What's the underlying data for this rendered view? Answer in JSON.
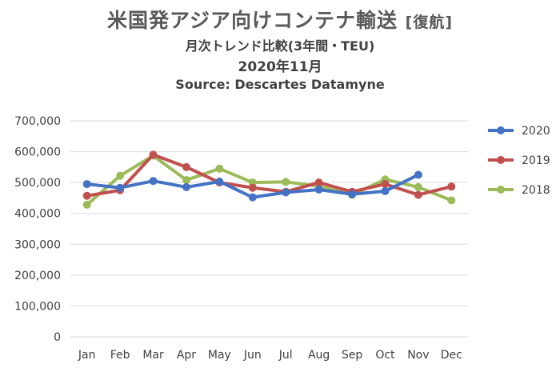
{
  "title": {
    "main": "米国発アジア向けコンテナ輸送",
    "main_suffix": "[復航]",
    "subtitle": "月次トレンド比較(3年間・TEU)",
    "date": "2020年11月",
    "source": "Source: Descartes Datamyne"
  },
  "chart_data": {
    "type": "line",
    "title": "米国発アジア向けコンテナ輸送 [復航]",
    "subtitle": "月次トレンド比較(3年間・TEU)",
    "categories": [
      "Jan",
      "Feb",
      "Mar",
      "Apr",
      "May",
      "Jun",
      "Jul",
      "Aug",
      "Sep",
      "Oct",
      "Nov",
      "Dec"
    ],
    "ylim": [
      0,
      700000
    ],
    "yticks": [
      0,
      100000,
      200000,
      300000,
      400000,
      500000,
      600000,
      700000
    ],
    "ytick_labels": [
      "0",
      "100,000",
      "200,000",
      "300,000",
      "400,000",
      "500,000",
      "600,000",
      "700,000"
    ],
    "grid": true,
    "legend_position": "right",
    "series": [
      {
        "name": "2020",
        "color": "#4472C4",
        "values": [
          495000,
          483000,
          505000,
          485000,
          503000,
          452000,
          468000,
          477000,
          462000,
          472000,
          525000,
          null
        ]
      },
      {
        "name": "2019",
        "color": "#C0504D",
        "values": [
          457000,
          475000,
          590000,
          550000,
          500000,
          483000,
          470000,
          500000,
          470000,
          495000,
          460000,
          487000
        ]
      },
      {
        "name": "2018",
        "color": "#9BBB59",
        "values": [
          428000,
          522000,
          587000,
          508000,
          545000,
          500000,
          502000,
          488000,
          460000,
          510000,
          485000,
          442000
        ]
      }
    ]
  }
}
